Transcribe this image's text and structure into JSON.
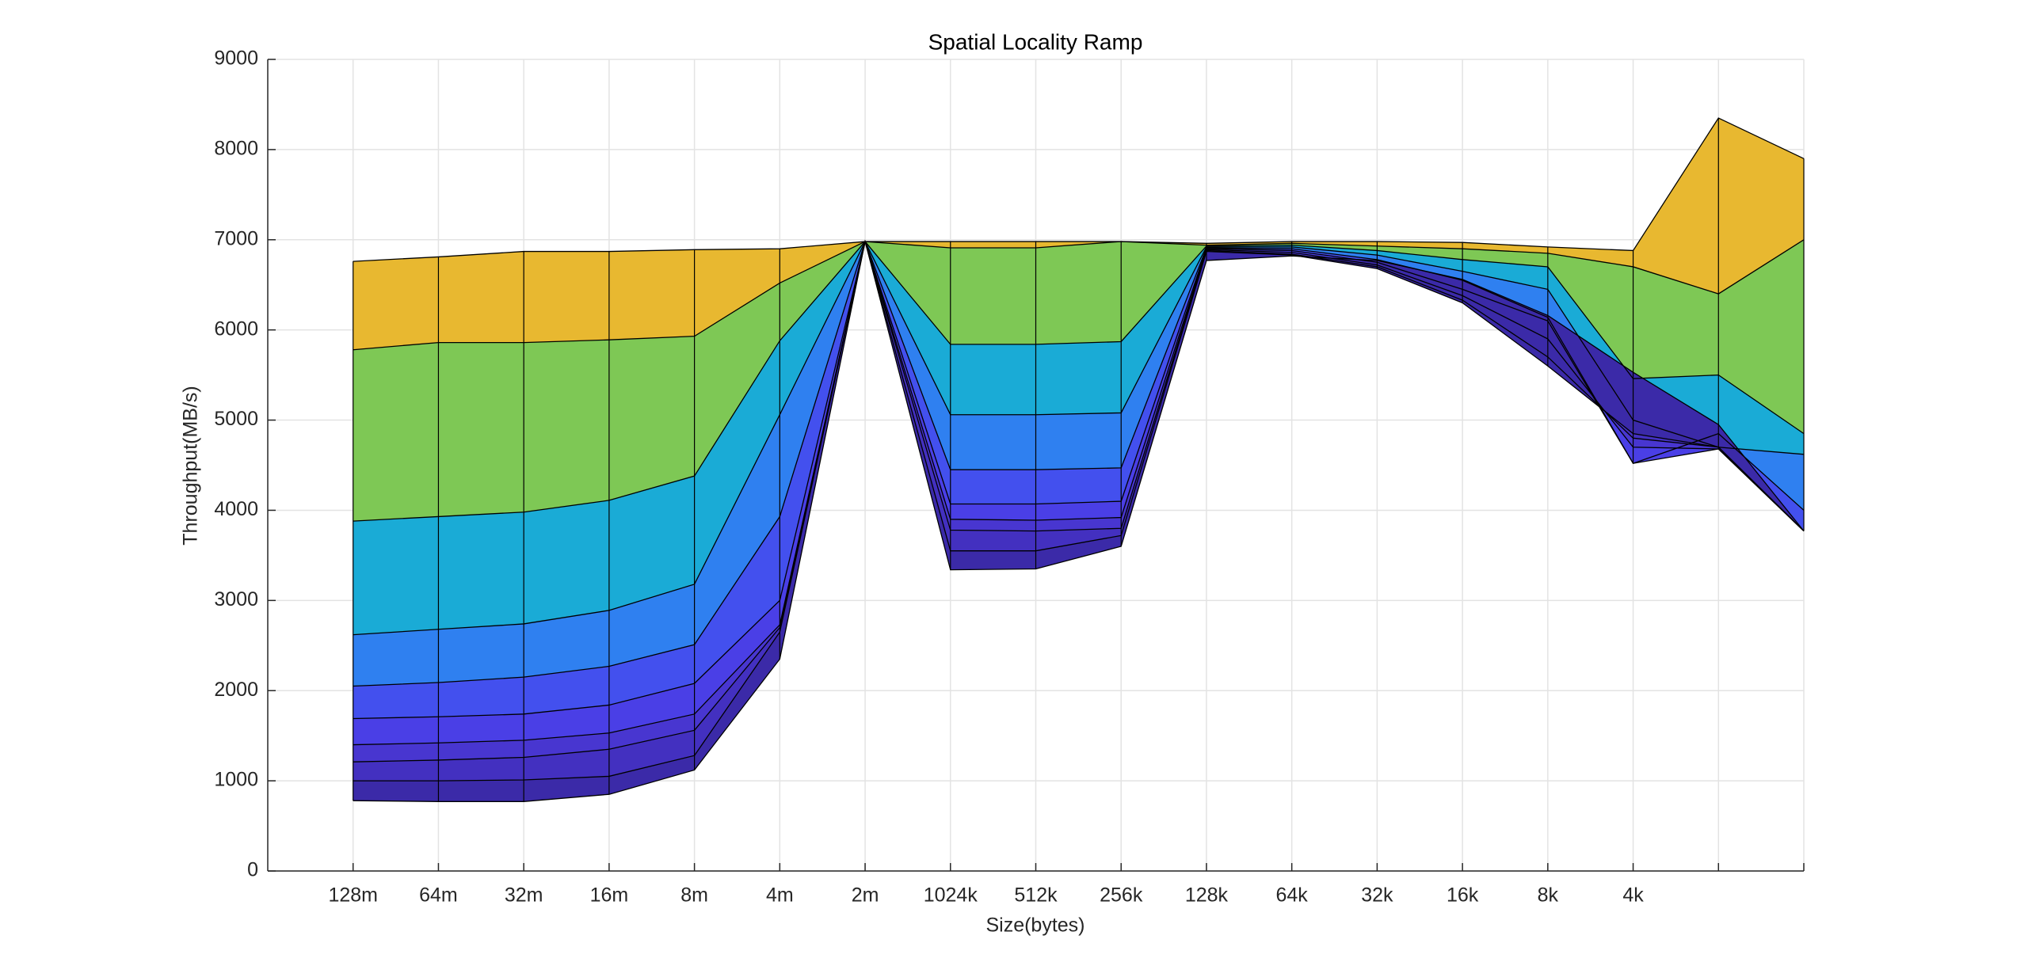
{
  "chart_data": {
    "type": "surface-profile",
    "title": "Spatial Locality Ramp",
    "xlabel": "Size(bytes)",
    "ylabel": "Throughput(MB/s)",
    "categories": [
      "128m",
      "64m",
      "32m",
      "16m",
      "8m",
      "4m",
      "2m",
      "1024k",
      "512k",
      "256k",
      "128k",
      "64k",
      "32k",
      "16k",
      "8k",
      "4k",
      null,
      null
    ],
    "ylim": [
      0,
      9000
    ],
    "yticks": [
      0,
      1000,
      2000,
      3000,
      4000,
      5000,
      6000,
      7000,
      8000,
      9000
    ],
    "grid": true,
    "series": [
      {
        "color": "#e8b830",
        "values": [
          6760,
          6810,
          6870,
          6870,
          6890,
          6900,
          6980,
          6980,
          6980,
          6980,
          6960,
          6980,
          6980,
          6970,
          6920,
          6880,
          8350,
          7900
        ]
      },
      {
        "color": "#7ec855",
        "values": [
          5780,
          5860,
          5860,
          5890,
          5930,
          6520,
          6980,
          6910,
          6910,
          6980,
          6940,
          6960,
          6930,
          6900,
          6850,
          6700,
          6400,
          7000
        ]
      },
      {
        "color": "#1aabd6",
        "values": [
          3880,
          3930,
          3980,
          4110,
          4380,
          5880,
          6980,
          5840,
          5840,
          5870,
          6930,
          6940,
          6880,
          6780,
          6700,
          5460,
          5500,
          4850
        ]
      },
      {
        "color": "#2f80f0",
        "values": [
          2620,
          2680,
          2740,
          2890,
          3180,
          5060,
          6980,
          5060,
          5060,
          5080,
          6920,
          6920,
          6830,
          6650,
          6450,
          5000,
          4700,
          4620
        ]
      },
      {
        "color": "#4350ee",
        "values": [
          2050,
          2090,
          2150,
          2270,
          2510,
          3930,
          6980,
          4450,
          4450,
          4470,
          6910,
          6900,
          6780,
          6550,
          6140,
          4520,
          4850,
          4000
        ]
      },
      {
        "color": "#4a3fe6",
        "values": [
          1690,
          1710,
          1740,
          1840,
          2080,
          3000,
          6980,
          4070,
          4070,
          4100,
          6900,
          6880,
          6750,
          6450,
          6100,
          4520,
          4680,
          3770
        ]
      },
      {
        "color": "#4836d0",
        "values": [
          1400,
          1420,
          1450,
          1530,
          1740,
          2730,
          6980,
          3900,
          3890,
          3920,
          6890,
          6860,
          6720,
          6380,
          5900,
          4700,
          4680,
          3770
        ]
      },
      {
        "color": "#4330c0",
        "values": [
          1210,
          1230,
          1260,
          1350,
          1560,
          2700,
          6980,
          3780,
          3770,
          3800,
          6880,
          6840,
          6700,
          6330,
          5700,
          4800,
          4700,
          3770
        ]
      },
      {
        "color": "#3b2aa8",
        "values": [
          1000,
          1000,
          1010,
          1050,
          1280,
          2650,
          6980,
          3550,
          3550,
          3720,
          6870,
          6830,
          6680,
          6300,
          5600,
          4850,
          4700,
          3770
        ]
      },
      {
        "color": "#352590",
        "values": [
          780,
          770,
          770,
          850,
          1120,
          2350,
          6980,
          3340,
          3350,
          3600,
          6770,
          6820,
          6770,
          6560,
          6160,
          5530,
          4950,
          3770
        ]
      }
    ]
  }
}
